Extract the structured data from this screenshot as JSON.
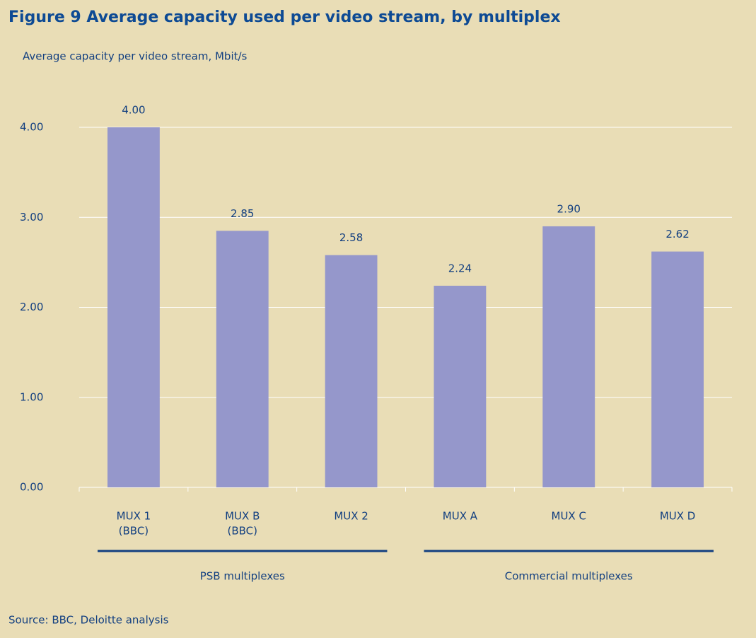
{
  "chart_data": {
    "type": "bar",
    "title": "Figure 9 Average capacity used per video stream, by multiplex",
    "y_label": "Average capacity per video stream, Mbit/s",
    "source": "Source: BBC, Deloitte analysis",
    "groups": [
      {
        "label": "PSB multiplexes",
        "categories": [
          [
            "MUX 1",
            "(BBC)"
          ],
          [
            "MUX B",
            "(BBC)"
          ],
          [
            "MUX 2"
          ]
        ]
      },
      {
        "label": "Commercial multiplexes",
        "categories": [
          [
            "MUX A"
          ],
          [
            "MUX C"
          ],
          [
            "MUX D"
          ]
        ]
      }
    ],
    "values": [
      4.0,
      2.85,
      2.58,
      2.24,
      2.9,
      2.62
    ],
    "value_labels": [
      "4.00",
      "2.85",
      "2.58",
      "2.24",
      "2.90",
      "2.62"
    ],
    "color": "#9597cb",
    "ylim": [
      0,
      4
    ],
    "yticks": [
      {
        "value": 0,
        "label": "0.00"
      },
      {
        "value": 1,
        "label": "1.00"
      },
      {
        "value": 2,
        "label": "2.00"
      },
      {
        "value": 3,
        "label": "3.00"
      },
      {
        "value": 4,
        "label": "4.00"
      }
    ],
    "grid": true
  }
}
